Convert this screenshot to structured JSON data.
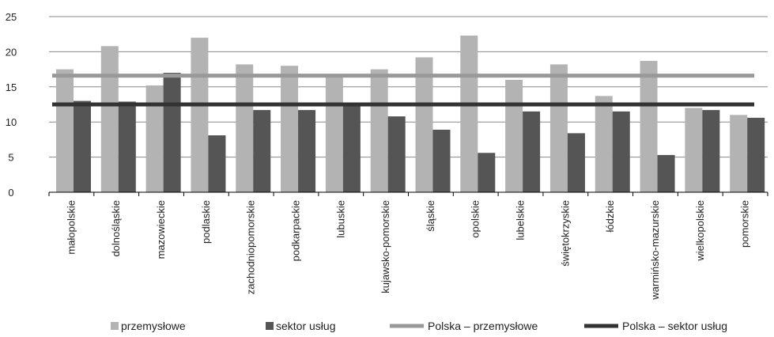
{
  "chart_data": {
    "type": "bar",
    "categories": [
      "małopolskie",
      "dolnośląskie",
      "mazowieckie",
      "podlaskie",
      "zachodniopomorskie",
      "podkarpackie",
      "lubuskie",
      "kujawsko-pomorskie",
      "śląskie",
      "opolskie",
      "lubelskie",
      "świętokrzyskie",
      "łódzkie",
      "warmińsko-mazurskie",
      "wielkopolskie",
      "pomorskie"
    ],
    "series": [
      {
        "name": "przemysłowe",
        "color": "#b3b3b3",
        "values": [
          17.5,
          20.8,
          15.2,
          22.0,
          18.2,
          18.0,
          16.5,
          17.5,
          19.2,
          22.3,
          16.0,
          18.2,
          13.7,
          18.7,
          12.0,
          11.0
        ]
      },
      {
        "name": "sektor usług",
        "color": "#555555",
        "values": [
          13.0,
          12.9,
          17.0,
          8.1,
          11.7,
          11.7,
          12.6,
          10.8,
          8.9,
          5.6,
          11.5,
          8.4,
          11.5,
          5.3,
          11.7,
          10.6
        ]
      }
    ],
    "reference_lines": [
      {
        "name": "Polska – przemysłowe",
        "value": 16.6,
        "color": "#999999"
      },
      {
        "name": "Polska – sektor usług",
        "value": 12.5,
        "color": "#333333"
      }
    ],
    "yticks": [
      0,
      5,
      10,
      15,
      20,
      25
    ],
    "ylim": [
      0,
      25
    ],
    "grid": true,
    "legend_position": "bottom",
    "title": "",
    "xlabel": "",
    "ylabel": ""
  }
}
